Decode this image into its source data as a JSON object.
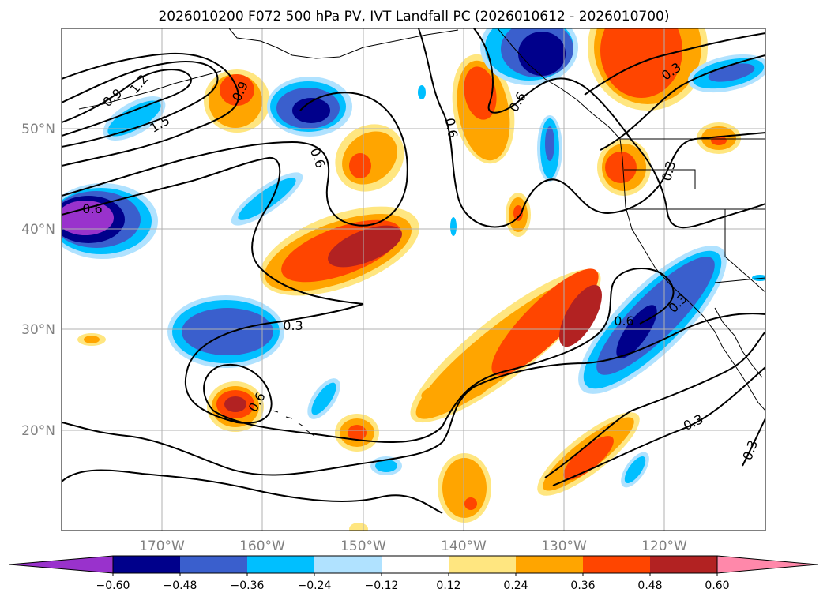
{
  "title": "2026010200 F072 500 hPa PV, IVT Landfall PC (2026010612 - 2026010700)",
  "map": {
    "lat_labels": [
      "50°N",
      "40°N",
      "30°N",
      "20°N"
    ],
    "lon_labels": [
      "170°W",
      "160°W",
      "150°W",
      "140°W",
      "130°W",
      "120°W"
    ]
  },
  "contour_labels": [
    "0.9",
    "1.2",
    "1.5",
    "0.9",
    "0.6",
    "0.6",
    "0.6",
    "0.6",
    "0.3",
    "0.3",
    "0.3",
    "0.6",
    "0.3",
    "0.6",
    "0.3",
    "0.3"
  ],
  "colorbar": {
    "tick_labels": [
      "−0.60",
      "−0.48",
      "−0.36",
      "−0.24",
      "−0.12",
      "0.12",
      "0.24",
      "0.36",
      "0.48",
      "0.60"
    ],
    "levels": [
      -0.6,
      -0.48,
      -0.36,
      -0.24,
      -0.12,
      0.12,
      0.24,
      0.36,
      0.48,
      0.6
    ],
    "colors": [
      "#9932cc",
      "#00008b",
      "#3a5fcd",
      "#00bfff",
      "#b0e2ff",
      "#ffffff",
      "#ffe680",
      "#ffa500",
      "#ff4500",
      "#b22222",
      "#ff88aa"
    ]
  },
  "chart_data": {
    "type": "map",
    "title": "2026010200 F072 500 hPa PV, IVT Landfall PC (2026010612 - 2026010700)",
    "lon_range": [
      -180,
      -110
    ],
    "lat_range": [
      10,
      60
    ],
    "shading": "IVT Landfall PC",
    "contours": "500 hPa PV",
    "contour_levels": [
      0.3,
      0.6,
      0.9,
      1.2,
      1.5
    ]
  }
}
